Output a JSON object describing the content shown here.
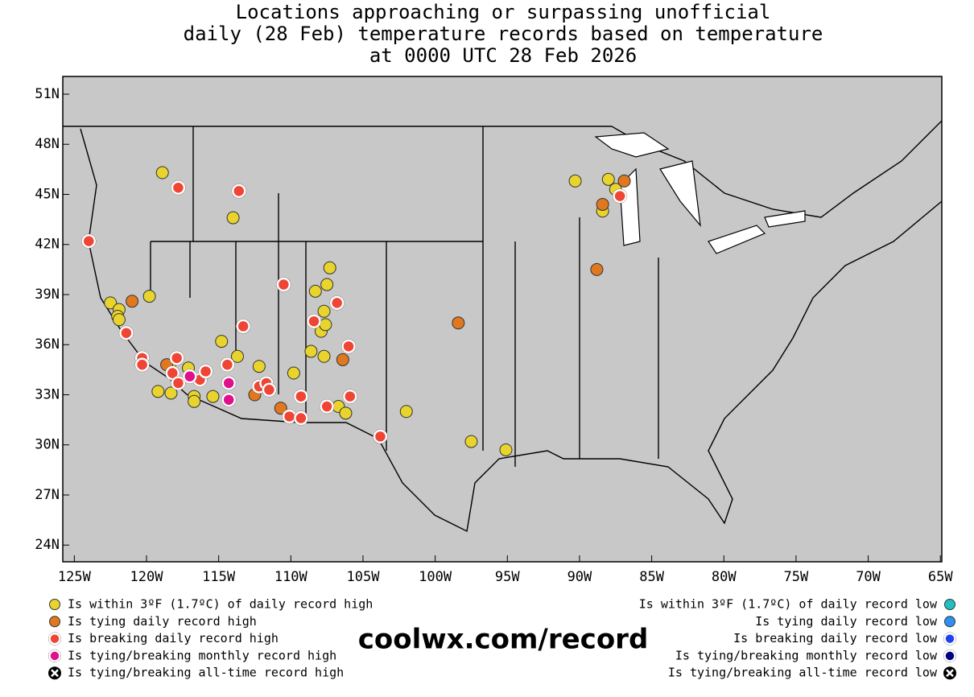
{
  "chart_data": {
    "type": "scatter",
    "title": [
      "Locations approaching or surpassing unofficial",
      "daily (28 Feb) temperature records based on temperature",
      "at 0000 UTC 28 Feb 2026"
    ],
    "watermark": "coolwx.com/record",
    "xlim": [
      -125.8,
      -64.9
    ],
    "ylim": [
      23,
      52.06
    ],
    "xticks": [
      {
        "value": -125,
        "label": "125W"
      },
      {
        "value": -120,
        "label": "120W"
      },
      {
        "value": -115,
        "label": "115W"
      },
      {
        "value": -110,
        "label": "110W"
      },
      {
        "value": -105,
        "label": "105W"
      },
      {
        "value": -100,
        "label": "100W"
      },
      {
        "value": -95,
        "label": "95W"
      },
      {
        "value": -90,
        "label": "90W"
      },
      {
        "value": -85,
        "label": "85W"
      },
      {
        "value": -80,
        "label": "80W"
      },
      {
        "value": -75,
        "label": "75W"
      },
      {
        "value": -70,
        "label": "70W"
      },
      {
        "value": -65,
        "label": "65W"
      }
    ],
    "yticks": [
      {
        "value": 24,
        "label": "24N"
      },
      {
        "value": 27,
        "label": "27N"
      },
      {
        "value": 30,
        "label": "30N"
      },
      {
        "value": 33,
        "label": "33N"
      },
      {
        "value": 36,
        "label": "36N"
      },
      {
        "value": 39,
        "label": "39N"
      },
      {
        "value": 42,
        "label": "42N"
      },
      {
        "value": 45,
        "label": "45N"
      },
      {
        "value": 48,
        "label": "48N"
      },
      {
        "value": 51,
        "label": "51N"
      }
    ],
    "series": [
      {
        "name": "Is within 3ºF (1.7ºC) of daily record high",
        "color": "#e8d42c",
        "edgecolor": "#333333",
        "legend": "left",
        "x": [
          -118.9,
          -114.0,
          -119.8,
          -122.5,
          -121.9,
          -122.0,
          -121.9,
          -114.8,
          -113.7,
          -118.4,
          -119.2,
          -118.3,
          -117.1,
          -116.7,
          -116.7,
          -115.4,
          -112.2,
          -109.8,
          -107.3,
          -108.3,
          -107.5,
          -107.7,
          -107.9,
          -107.6,
          -108.6,
          -107.7,
          -106.7,
          -106.2,
          -102.0,
          -97.5,
          -95.1,
          -90.3,
          -88.0,
          -88.4,
          -87.5
        ],
        "y": [
          46.3,
          43.6,
          38.9,
          38.5,
          38.1,
          37.7,
          37.5,
          36.2,
          35.3,
          34.7,
          33.2,
          33.1,
          34.6,
          32.9,
          32.6,
          32.9,
          34.7,
          34.3,
          40.6,
          39.2,
          39.6,
          38.0,
          36.8,
          37.2,
          35.6,
          35.3,
          32.3,
          31.9,
          32.0,
          30.2,
          29.7,
          45.8,
          45.9,
          44.0,
          45.3
        ]
      },
      {
        "name": "Is tying daily record high",
        "color": "#e07820",
        "edgecolor": "#333333",
        "legend": "left",
        "x": [
          -121.0,
          -118.6,
          -112.5,
          -110.7,
          -106.4,
          -98.4,
          -88.8,
          -88.4,
          -86.9
        ],
        "y": [
          38.6,
          34.8,
          33.0,
          32.2,
          35.1,
          37.3,
          40.5,
          44.4,
          45.8
        ]
      },
      {
        "name": "Is breaking daily record high",
        "color": "#f04434",
        "edgecolor": "#ffffff",
        "legend": "left",
        "x": [
          -124.0,
          -117.8,
          -113.6,
          -110.5,
          -106.8,
          -113.3,
          -108.4,
          -106.0,
          -121.4,
          -120.3,
          -120.3,
          -118.2,
          -117.9,
          -116.3,
          -115.9,
          -114.4,
          -112.2,
          -111.7,
          -111.5,
          -109.3,
          -110.1,
          -109.3,
          -107.5,
          -105.9,
          -103.8,
          -87.2,
          -117.8
        ],
        "y": [
          42.2,
          45.4,
          45.2,
          39.6,
          38.5,
          37.1,
          37.4,
          35.9,
          36.7,
          35.2,
          34.8,
          34.3,
          35.2,
          33.9,
          34.4,
          34.8,
          33.5,
          33.7,
          33.3,
          32.9,
          31.7,
          31.6,
          32.3,
          32.9,
          30.5,
          44.9,
          33.7
        ]
      },
      {
        "name": "Is tying/breaking monthly record high",
        "color": "#e0108c",
        "edgecolor": "#ffffff",
        "legend": "left",
        "x": [
          -117.0,
          -114.3,
          -114.3
        ],
        "y": [
          34.1,
          33.7,
          32.7
        ]
      },
      {
        "name": "Is tying/breaking all-time record high",
        "color": "#000000",
        "edgecolor": "#ffffff",
        "legend": "left",
        "x": [],
        "y": []
      },
      {
        "name": "Is within 3ºF (1.7ºC) of daily record low",
        "color": "#20c0c0",
        "edgecolor": "#333333",
        "legend": "right",
        "x": [],
        "y": []
      },
      {
        "name": "Is tying daily record low",
        "color": "#3090f0",
        "edgecolor": "#333333",
        "legend": "right",
        "x": [],
        "y": []
      },
      {
        "name": "Is breaking daily record low",
        "color": "#2040f0",
        "edgecolor": "#ffffff",
        "legend": "right",
        "x": [],
        "y": []
      },
      {
        "name": "Is tying/breaking monthly record low",
        "color": "#000080",
        "edgecolor": "#ffffff",
        "legend": "right",
        "x": [],
        "y": []
      },
      {
        "name": "Is tying/breaking all-time record low",
        "color": "#000000",
        "edgecolor": "#ffffff",
        "legend": "right",
        "x": [],
        "y": []
      }
    ]
  }
}
